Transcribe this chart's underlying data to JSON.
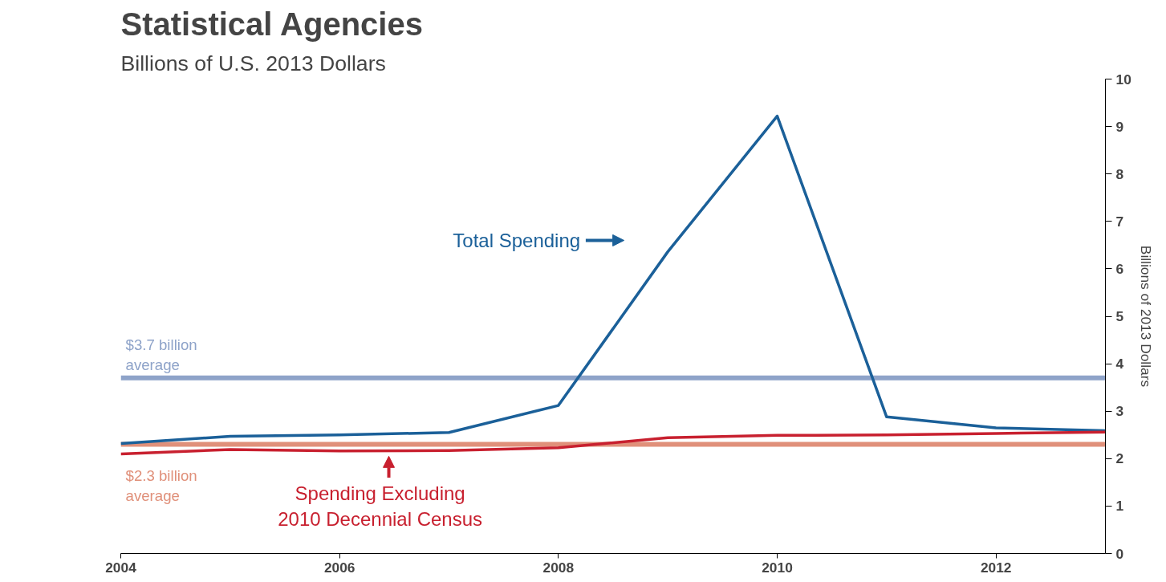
{
  "chart_data": {
    "type": "line",
    "title": "Statistical Agencies",
    "subtitle": "Billions of U.S. 2013 Dollars",
    "ylabel": "Billions of 2013 Dollars",
    "x": [
      2004,
      2005,
      2006,
      2007,
      2008,
      2009,
      2010,
      2011,
      2012,
      2013
    ],
    "series": [
      {
        "name": "Total Spending",
        "color": "#1b6099",
        "values": [
          2.32,
          2.47,
          2.5,
          2.55,
          3.12,
          6.36,
          9.22,
          2.88,
          2.65,
          2.59
        ]
      },
      {
        "name": "Spending Excluding 2010 Decennial Census",
        "color": "#c8202f",
        "values": [
          2.1,
          2.19,
          2.16,
          2.17,
          2.23,
          2.44,
          2.49,
          2.5,
          2.53,
          2.56
        ]
      }
    ],
    "ref_lines": [
      {
        "axis": "y",
        "value": 3.7,
        "label": "$3.7 billion average",
        "color": "#8ea3c9"
      },
      {
        "axis": "y",
        "value": 2.3,
        "label": "$2.3 billion average",
        "color": "#e0907a"
      }
    ],
    "xlim": [
      2004,
      2013
    ],
    "xticks": [
      2004,
      2006,
      2008,
      2010,
      2012
    ],
    "ylim": [
      0,
      10
    ],
    "yticks": [
      0,
      1,
      2,
      3,
      4,
      5,
      6,
      7,
      8,
      9,
      10
    ],
    "grid": false,
    "marker": "none",
    "line_style": "solid"
  }
}
